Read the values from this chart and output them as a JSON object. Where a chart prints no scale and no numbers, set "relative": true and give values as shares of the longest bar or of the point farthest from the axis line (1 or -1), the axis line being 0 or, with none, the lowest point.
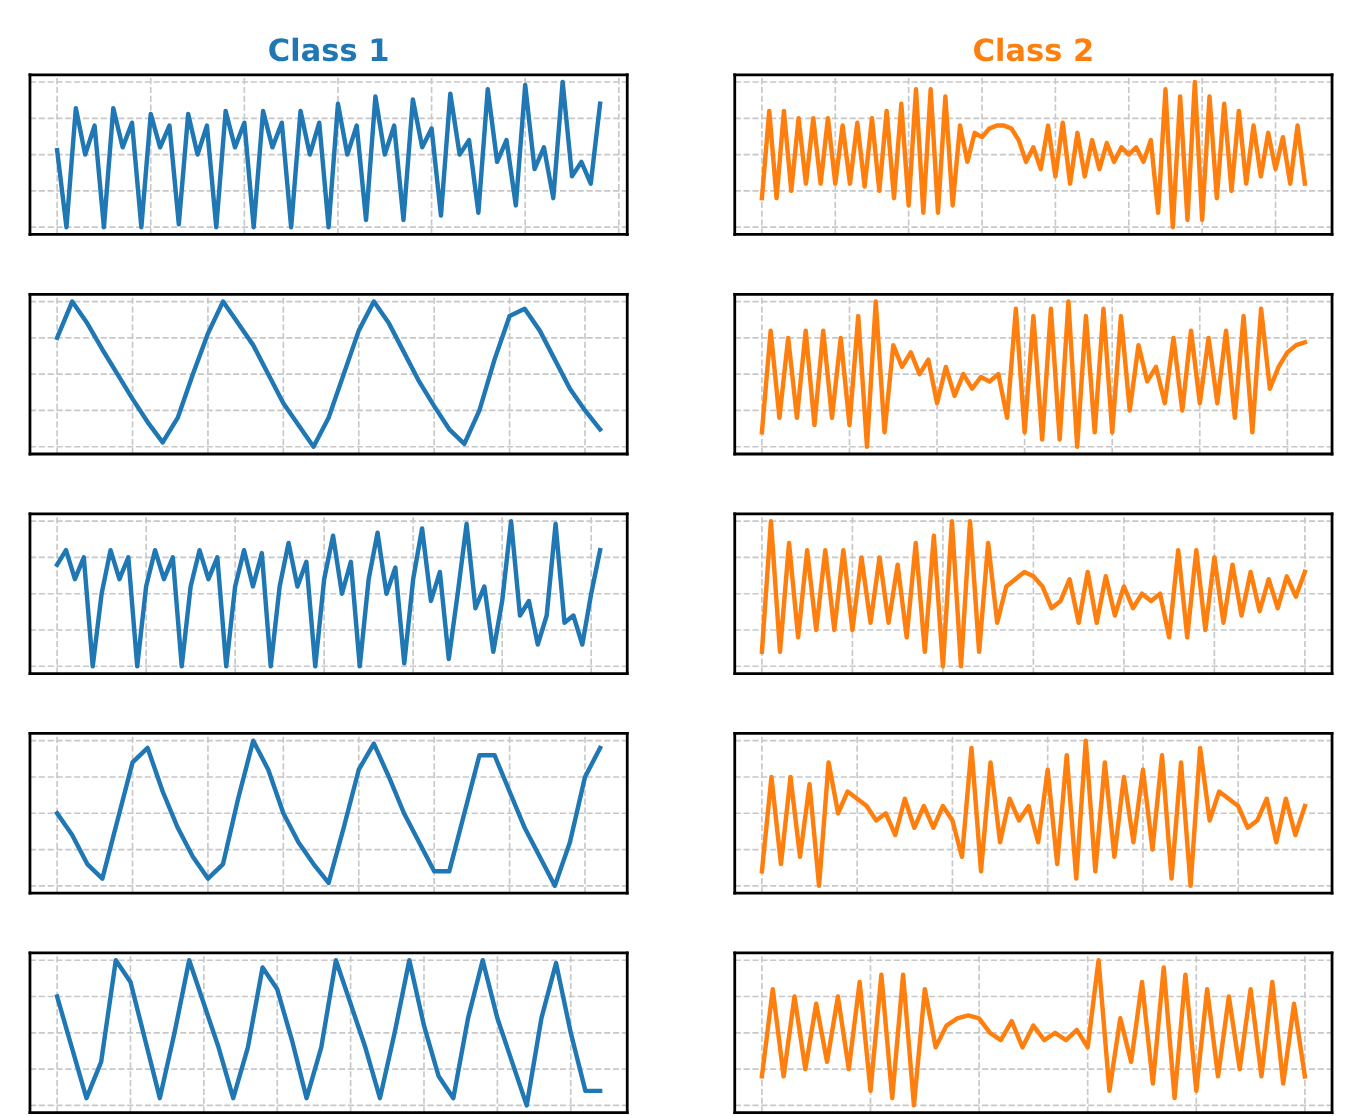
{
  "chart_data": [
    {
      "type": "line",
      "title": "Class 1",
      "relative": true,
      "grid": true,
      "tick_labels": false,
      "categories": [
        null,
        null,
        null,
        null,
        null,
        null,
        null,
        null,
        null,
        null,
        null,
        null,
        null,
        null,
        null,
        null,
        null,
        null,
        null,
        null,
        null,
        null,
        null,
        null,
        null,
        null,
        null,
        null,
        null,
        null,
        null,
        null,
        null,
        null,
        null,
        null,
        null,
        null,
        null,
        null,
        null,
        null,
        null,
        null,
        null,
        null,
        null,
        null,
        null,
        null,
        null,
        null,
        null,
        null,
        null,
        null,
        null,
        null,
        null
      ],
      "series": [
        {
          "color": "#1f77b4",
          "values": [
            0.53,
            0,
            0.82,
            0.5,
            0.7,
            0,
            0.82,
            0.55,
            0.72,
            0,
            0.78,
            0.55,
            0.7,
            0.02,
            0.78,
            0.5,
            0.7,
            0,
            0.8,
            0.55,
            0.72,
            0,
            0.8,
            0.55,
            0.72,
            0,
            0.8,
            0.5,
            0.72,
            0,
            0.85,
            0.5,
            0.7,
            0.05,
            0.9,
            0.5,
            0.7,
            0.05,
            0.88,
            0.55,
            0.68,
            0.08,
            0.92,
            0.5,
            0.6,
            0.1,
            0.95,
            0.45,
            0.6,
            0.15,
            0.98,
            0.4,
            0.55,
            0.2,
            1.0,
            0.35,
            0.45,
            0.3,
            0.85
          ]
        }
      ]
    },
    {
      "type": "line",
      "title": "Class 2",
      "relative": true,
      "grid": true,
      "tick_labels": false,
      "categories": [
        null,
        null,
        null,
        null,
        null,
        null,
        null,
        null,
        null,
        null,
        null,
        null,
        null,
        null,
        null,
        null,
        null,
        null,
        null,
        null,
        null,
        null,
        null,
        null,
        null,
        null,
        null,
        null,
        null,
        null,
        null,
        null,
        null,
        null,
        null,
        null,
        null,
        null,
        null,
        null,
        null,
        null,
        null,
        null,
        null,
        null,
        null,
        null,
        null,
        null,
        null,
        null,
        null,
        null,
        null,
        null,
        null,
        null,
        null,
        null,
        null,
        null,
        null,
        null,
        null,
        null,
        null,
        null,
        null,
        null,
        null,
        null,
        null,
        null,
        null
      ],
      "series": [
        {
          "color": "#ff7f0e",
          "values": [
            0.2,
            0.8,
            0.2,
            0.8,
            0.25,
            0.75,
            0.3,
            0.75,
            0.3,
            0.75,
            0.3,
            0.7,
            0.3,
            0.72,
            0.28,
            0.75,
            0.25,
            0.8,
            0.2,
            0.85,
            0.15,
            0.95,
            0.1,
            0.95,
            0.1,
            0.9,
            0.15,
            0.7,
            0.45,
            0.65,
            0.62,
            0.68,
            0.7,
            0.7,
            0.68,
            0.6,
            0.45,
            0.55,
            0.4,
            0.7,
            0.35,
            0.72,
            0.3,
            0.65,
            0.35,
            0.6,
            0.4,
            0.58,
            0.45,
            0.55,
            0.5,
            0.55,
            0.45,
            0.6,
            0.1,
            0.95,
            0,
            0.9,
            0.05,
            1,
            0.05,
            0.9,
            0.2,
            0.85,
            0.25,
            0.8,
            0.3,
            0.7,
            0.35,
            0.65,
            0.4,
            0.62,
            0.3,
            0.7,
            0.3
          ]
        }
      ]
    },
    {
      "type": "line",
      "relative": true,
      "grid": true,
      "tick_labels": false,
      "categories": [
        null,
        null,
        null,
        null,
        null,
        null,
        null,
        null,
        null,
        null,
        null,
        null,
        null,
        null,
        null,
        null,
        null,
        null,
        null,
        null,
        null,
        null,
        null,
        null,
        null,
        null,
        null,
        null,
        null,
        null,
        null,
        null,
        null,
        null,
        null,
        null,
        null
      ],
      "series": [
        {
          "color": "#1f77b4",
          "values": [
            0.75,
            1,
            0.85,
            0.67,
            0.5,
            0.33,
            0.17,
            0.03,
            0.2,
            0.5,
            0.78,
            1,
            0.85,
            0.7,
            0.5,
            0.3,
            0.15,
            0,
            0.2,
            0.5,
            0.8,
            1,
            0.85,
            0.65,
            0.45,
            0.28,
            0.12,
            0.02,
            0.25,
            0.6,
            0.9,
            0.95,
            0.8,
            0.6,
            0.4,
            0.25,
            0.12
          ]
        }
      ]
    },
    {
      "type": "line",
      "relative": true,
      "grid": true,
      "tick_labels": false,
      "categories": [
        null,
        null,
        null,
        null,
        null,
        null,
        null,
        null,
        null,
        null,
        null,
        null,
        null,
        null,
        null,
        null,
        null,
        null,
        null,
        null,
        null,
        null,
        null,
        null,
        null,
        null,
        null,
        null,
        null,
        null,
        null,
        null,
        null,
        null,
        null,
        null,
        null,
        null,
        null,
        null,
        null,
        null,
        null,
        null,
        null,
        null,
        null,
        null,
        null,
        null,
        null,
        null,
        null,
        null,
        null,
        null,
        null,
        null,
        null,
        null,
        null,
        null,
        null
      ],
      "series": [
        {
          "color": "#ff7f0e",
          "values": [
            0.1,
            0.8,
            0.2,
            0.75,
            0.2,
            0.8,
            0.15,
            0.8,
            0.2,
            0.75,
            0.15,
            0.9,
            0.0,
            1.0,
            0.1,
            0.7,
            0.55,
            0.65,
            0.5,
            0.6,
            0.3,
            0.55,
            0.35,
            0.5,
            0.4,
            0.48,
            0.45,
            0.5,
            0.2,
            0.95,
            0.1,
            0.9,
            0.05,
            0.95,
            0.05,
            1.0,
            0.0,
            0.9,
            0.1,
            0.95,
            0.1,
            0.9,
            0.25,
            0.7,
            0.45,
            0.55,
            0.3,
            0.75,
            0.25,
            0.8,
            0.3,
            0.75,
            0.3,
            0.8,
            0.2,
            0.9,
            0.1,
            0.95,
            0.4,
            0.55,
            0.65,
            0.7,
            0.72
          ]
        }
      ]
    },
    {
      "type": "line",
      "relative": true,
      "grid": true,
      "tick_labels": false,
      "categories": [
        null,
        null,
        null,
        null,
        null,
        null,
        null,
        null,
        null,
        null,
        null,
        null,
        null,
        null,
        null,
        null,
        null,
        null,
        null,
        null,
        null,
        null,
        null,
        null,
        null,
        null,
        null,
        null,
        null,
        null,
        null,
        null,
        null,
        null,
        null,
        null,
        null,
        null,
        null,
        null,
        null,
        null,
        null,
        null,
        null,
        null,
        null,
        null,
        null,
        null,
        null,
        null,
        null,
        null,
        null,
        null,
        null,
        null,
        null,
        null,
        null,
        null
      ],
      "series": [
        {
          "color": "#1f77b4",
          "values": [
            0.7,
            0.8,
            0.6,
            0.75,
            0,
            0.5,
            0.8,
            0.6,
            0.75,
            0,
            0.55,
            0.8,
            0.6,
            0.75,
            0,
            0.55,
            0.8,
            0.6,
            0.75,
            0,
            0.55,
            0.8,
            0.55,
            0.78,
            0,
            0.55,
            0.85,
            0.55,
            0.72,
            0,
            0.6,
            0.9,
            0.5,
            0.72,
            0,
            0.6,
            0.92,
            0.5,
            0.68,
            0.02,
            0.6,
            0.95,
            0.45,
            0.65,
            0.05,
            0.5,
            0.98,
            0.4,
            0.55,
            0.1,
            0.45,
            1.0,
            0.35,
            0.45,
            0.15,
            0.35,
            0.98,
            0.3,
            0.35,
            0.15,
            0.5,
            0.8
          ]
        }
      ]
    },
    {
      "type": "line",
      "relative": true,
      "grid": true,
      "tick_labels": false,
      "categories": [
        null,
        null,
        null,
        null,
        null,
        null,
        null,
        null,
        null,
        null,
        null,
        null,
        null,
        null,
        null,
        null,
        null,
        null,
        null,
        null,
        null,
        null,
        null,
        null,
        null,
        null,
        null,
        null,
        null,
        null,
        null,
        null,
        null,
        null,
        null,
        null,
        null,
        null,
        null,
        null,
        null,
        null,
        null,
        null,
        null,
        null,
        null,
        null,
        null,
        null,
        null,
        null,
        null,
        null,
        null,
        null,
        null,
        null,
        null,
        null,
        null
      ],
      "series": [
        {
          "color": "#ff7f0e",
          "values": [
            0.1,
            1.0,
            0.1,
            0.85,
            0.2,
            0.8,
            0.25,
            0.8,
            0.25,
            0.8,
            0.25,
            0.75,
            0.3,
            0.75,
            0.3,
            0.7,
            0.2,
            0.85,
            0.1,
            0.9,
            0.0,
            1.0,
            0.0,
            1.0,
            0.1,
            0.85,
            0.3,
            0.55,
            0.6,
            0.65,
            0.62,
            0.55,
            0.4,
            0.45,
            0.6,
            0.3,
            0.65,
            0.3,
            0.62,
            0.35,
            0.55,
            0.4,
            0.5,
            0.45,
            0.5,
            0.2,
            0.8,
            0.2,
            0.8,
            0.25,
            0.75,
            0.3,
            0.7,
            0.35,
            0.65,
            0.38,
            0.6,
            0.4,
            0.62,
            0.48,
            0.65
          ]
        }
      ]
    },
    {
      "type": "line",
      "relative": true,
      "grid": true,
      "tick_labels": false,
      "categories": [
        null,
        null,
        null,
        null,
        null,
        null,
        null,
        null,
        null,
        null,
        null,
        null,
        null,
        null,
        null,
        null,
        null,
        null,
        null,
        null,
        null,
        null,
        null,
        null,
        null,
        null,
        null,
        null,
        null,
        null,
        null,
        null,
        null,
        null,
        null,
        null,
        null
      ],
      "series": [
        {
          "color": "#1f77b4",
          "values": [
            0.5,
            0.35,
            0.15,
            0.05,
            0.45,
            0.85,
            0.95,
            0.65,
            0.4,
            0.2,
            0.05,
            0.15,
            0.6,
            1,
            0.8,
            0.5,
            0.3,
            0.15,
            0.02,
            0.4,
            0.8,
            0.98,
            0.75,
            0.5,
            0.3,
            0.1,
            0.1,
            0.5,
            0.9,
            0.9,
            0.65,
            0.4,
            0.2,
            0,
            0.3,
            0.75,
            0.95
          ]
        }
      ]
    },
    {
      "type": "line",
      "relative": true,
      "grid": true,
      "tick_labels": false,
      "categories": [
        null,
        null,
        null,
        null,
        null,
        null,
        null,
        null,
        null,
        null,
        null,
        null,
        null,
        null,
        null,
        null,
        null,
        null,
        null,
        null,
        null,
        null,
        null,
        null,
        null,
        null,
        null,
        null,
        null,
        null,
        null,
        null,
        null,
        null,
        null,
        null,
        null,
        null,
        null,
        null,
        null,
        null,
        null,
        null,
        null,
        null,
        null,
        null,
        null,
        null,
        null,
        null,
        null,
        null,
        null,
        null,
        null,
        null
      ],
      "series": [
        {
          "color": "#ff7f0e",
          "values": [
            0.1,
            0.75,
            0.15,
            0.75,
            0.2,
            0.7,
            0.0,
            0.85,
            0.5,
            0.65,
            0.6,
            0.55,
            0.45,
            0.5,
            0.35,
            0.6,
            0.4,
            0.55,
            0.4,
            0.55,
            0.45,
            0.2,
            0.95,
            0.1,
            0.85,
            0.3,
            0.6,
            0.45,
            0.55,
            0.3,
            0.8,
            0.15,
            0.9,
            0.05,
            1.0,
            0.1,
            0.85,
            0.2,
            0.75,
            0.3,
            0.8,
            0.25,
            0.9,
            0.05,
            0.85,
            0.0,
            0.95,
            0.45,
            0.65,
            0.6,
            0.55,
            0.4,
            0.45,
            0.6,
            0.3,
            0.6,
            0.35,
            0.55
          ]
        }
      ]
    },
    {
      "type": "line",
      "relative": true,
      "grid": true,
      "tick_labels": false,
      "categories": [
        null,
        null,
        null,
        null,
        null,
        null,
        null,
        null,
        null,
        null,
        null,
        null,
        null,
        null,
        null,
        null,
        null,
        null,
        null,
        null,
        null,
        null,
        null,
        null,
        null,
        null,
        null,
        null,
        null,
        null,
        null,
        null,
        null,
        null,
        null,
        null,
        null,
        null
      ],
      "series": [
        {
          "color": "#1f77b4",
          "values": [
            0.75,
            0.4,
            0.05,
            0.3,
            1,
            0.85,
            0.45,
            0.05,
            0.5,
            1,
            0.7,
            0.4,
            0.05,
            0.4,
            0.95,
            0.8,
            0.45,
            0.05,
            0.4,
            1,
            0.7,
            0.4,
            0.05,
            0.5,
            1,
            0.55,
            0.2,
            0.05,
            0.6,
            1,
            0.6,
            0.3,
            0,
            0.6,
            0.98,
            0.5,
            0.1,
            0.1
          ]
        }
      ]
    },
    {
      "type": "line",
      "relative": true,
      "grid": true,
      "tick_labels": false,
      "categories": [
        null,
        null,
        null,
        null,
        null,
        null,
        null,
        null,
        null,
        null,
        null,
        null,
        null,
        null,
        null,
        null,
        null,
        null,
        null,
        null,
        null,
        null,
        null,
        null,
        null,
        null,
        null,
        null,
        null,
        null,
        null,
        null,
        null,
        null,
        null,
        null,
        null,
        null,
        null,
        null,
        null,
        null,
        null,
        null,
        null,
        null,
        null,
        null,
        null,
        null,
        null
      ],
      "series": [
        {
          "color": "#ff7f0e",
          "values": [
            0.2,
            0.8,
            0.2,
            0.75,
            0.25,
            0.7,
            0.3,
            0.75,
            0.25,
            0.85,
            0.1,
            0.9,
            0.05,
            0.9,
            0.0,
            0.8,
            0.4,
            0.55,
            0.6,
            0.62,
            0.6,
            0.5,
            0.45,
            0.58,
            0.4,
            0.55,
            0.45,
            0.5,
            0.45,
            0.52,
            0.4,
            1.0,
            0.1,
            0.6,
            0.3,
            0.85,
            0.15,
            0.95,
            0.05,
            0.9,
            0.1,
            0.8,
            0.2,
            0.75,
            0.25,
            0.8,
            0.2,
            0.85,
            0.15,
            0.7,
            0.2
          ]
        }
      ]
    }
  ]
}
